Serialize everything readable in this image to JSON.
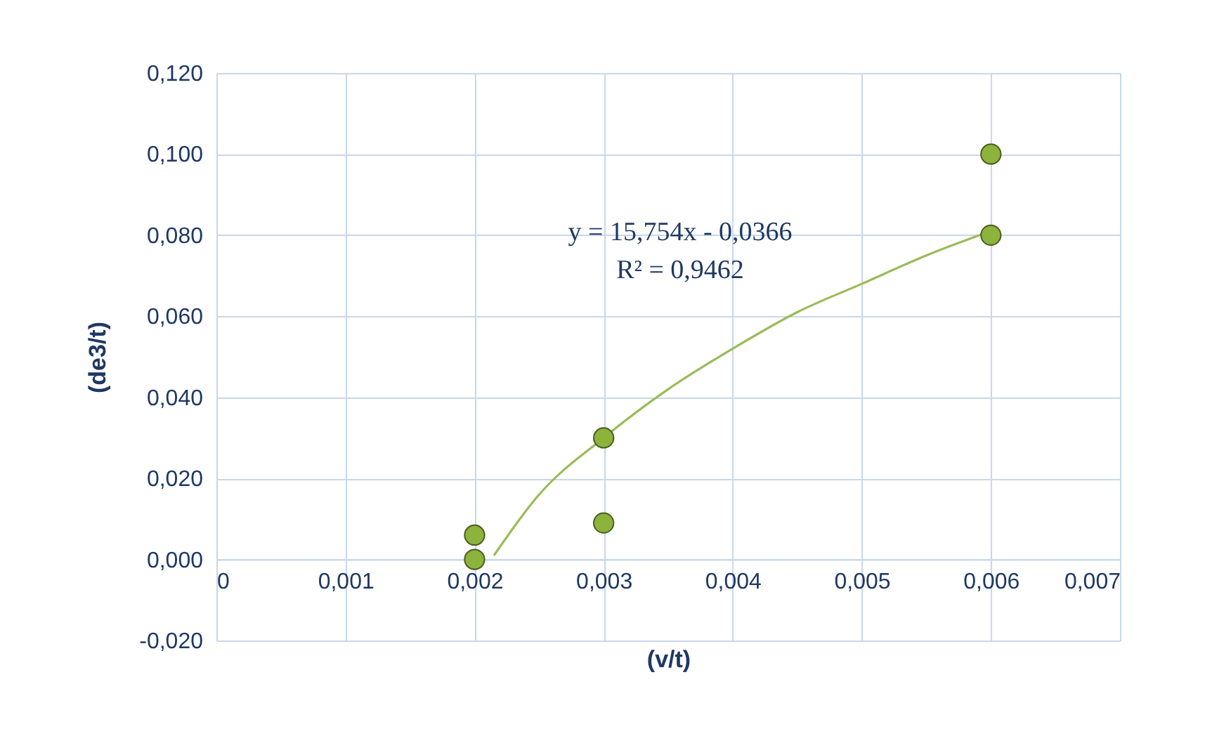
{
  "chart_data": {
    "type": "scatter",
    "xlabel": "(v/t)",
    "ylabel": "(de3/t)",
    "xlim": [
      0,
      0.007
    ],
    "ylim": [
      -0.02,
      0.12
    ],
    "xticks": [
      0,
      {
        "value": 0.001,
        "label": "0,001"
      },
      {
        "value": 0.002,
        "label": "0,002"
      },
      {
        "value": 0.003,
        "label": "0,003"
      },
      {
        "value": 0.004,
        "label": "0,004"
      },
      {
        "value": 0.005,
        "label": "0,005"
      },
      {
        "value": 0.006,
        "label": "0,006"
      },
      {
        "value": 0.007,
        "label": "0,007"
      }
    ],
    "yticks": [
      {
        "value": -0.02,
        "label": "-0,020"
      },
      {
        "value": 0,
        "label": "0,000"
      },
      {
        "value": 0.02,
        "label": "0,020"
      },
      {
        "value": 0.04,
        "label": "0,040"
      },
      {
        "value": 0.06,
        "label": "0,060"
      },
      {
        "value": 0.08,
        "label": "0,080"
      },
      {
        "value": 0.1,
        "label": "0,100"
      },
      {
        "value": 0.12,
        "label": "0,120"
      }
    ],
    "grid": true,
    "annotations": [
      "y = 15,754x - 0,0366",
      "R² = 0,9462"
    ],
    "series": [
      {
        "marker": "circle",
        "color": "#8cb33c",
        "x": [
          0.002,
          0.002,
          0.003,
          0.003,
          0.006,
          0.006
        ],
        "values": [
          0.006,
          0.0,
          0.03,
          0.009,
          0.1,
          0.08
        ]
      },
      {
        "type": "line",
        "color": "#9bbb59",
        "x": [
          0.00215,
          0.0025,
          0.003,
          0.0035,
          0.004,
          0.0045,
          0.005,
          0.0055,
          0.006
        ],
        "values": [
          0.001,
          0.016,
          0.03,
          0.042,
          0.052,
          0.061,
          0.068,
          0.075,
          0.081
        ]
      }
    ]
  }
}
